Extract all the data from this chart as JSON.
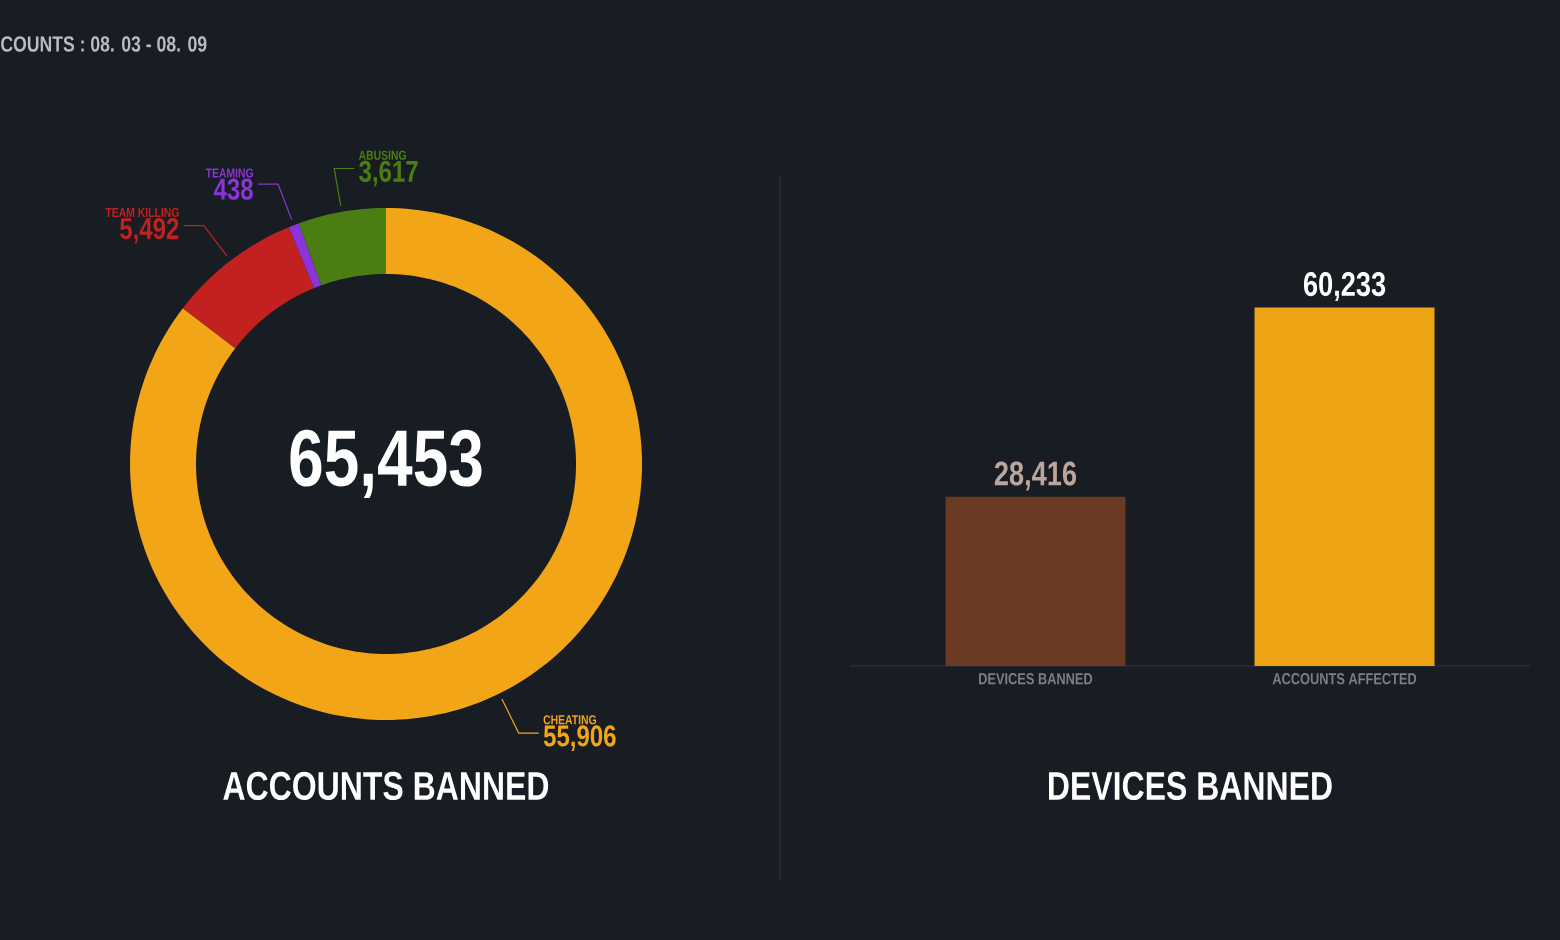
{
  "chart_data": [
    {
      "type": "donut",
      "title": "ACCOUNTS BANNED",
      "annotations": [
        "COUNTS : 08. 03 - 08. 09",
        "65,453"
      ],
      "categories": [
        "CHEATING",
        "TEAM KILLING",
        "TEAMING",
        "ABUSING"
      ],
      "values": [
        55906,
        5492,
        438,
        3617
      ],
      "colors": [
        "#f2a516",
        "#c3211f",
        "#8b34d8",
        "#4b7e12"
      ],
      "value_labels": [
        "55,906",
        "5,492",
        "438",
        "3,617"
      ]
    },
    {
      "type": "bar",
      "title": "DEVICES BANNED",
      "categories": [
        "DEVICES BANNED",
        "ACCOUNTS AFFECTED"
      ],
      "values": [
        28416,
        60233
      ],
      "colors": [
        "#6b3a22",
        "#eca414"
      ],
      "value_labels": [
        "28,416",
        "60,233"
      ],
      "tick_labels": "x"
    }
  ]
}
